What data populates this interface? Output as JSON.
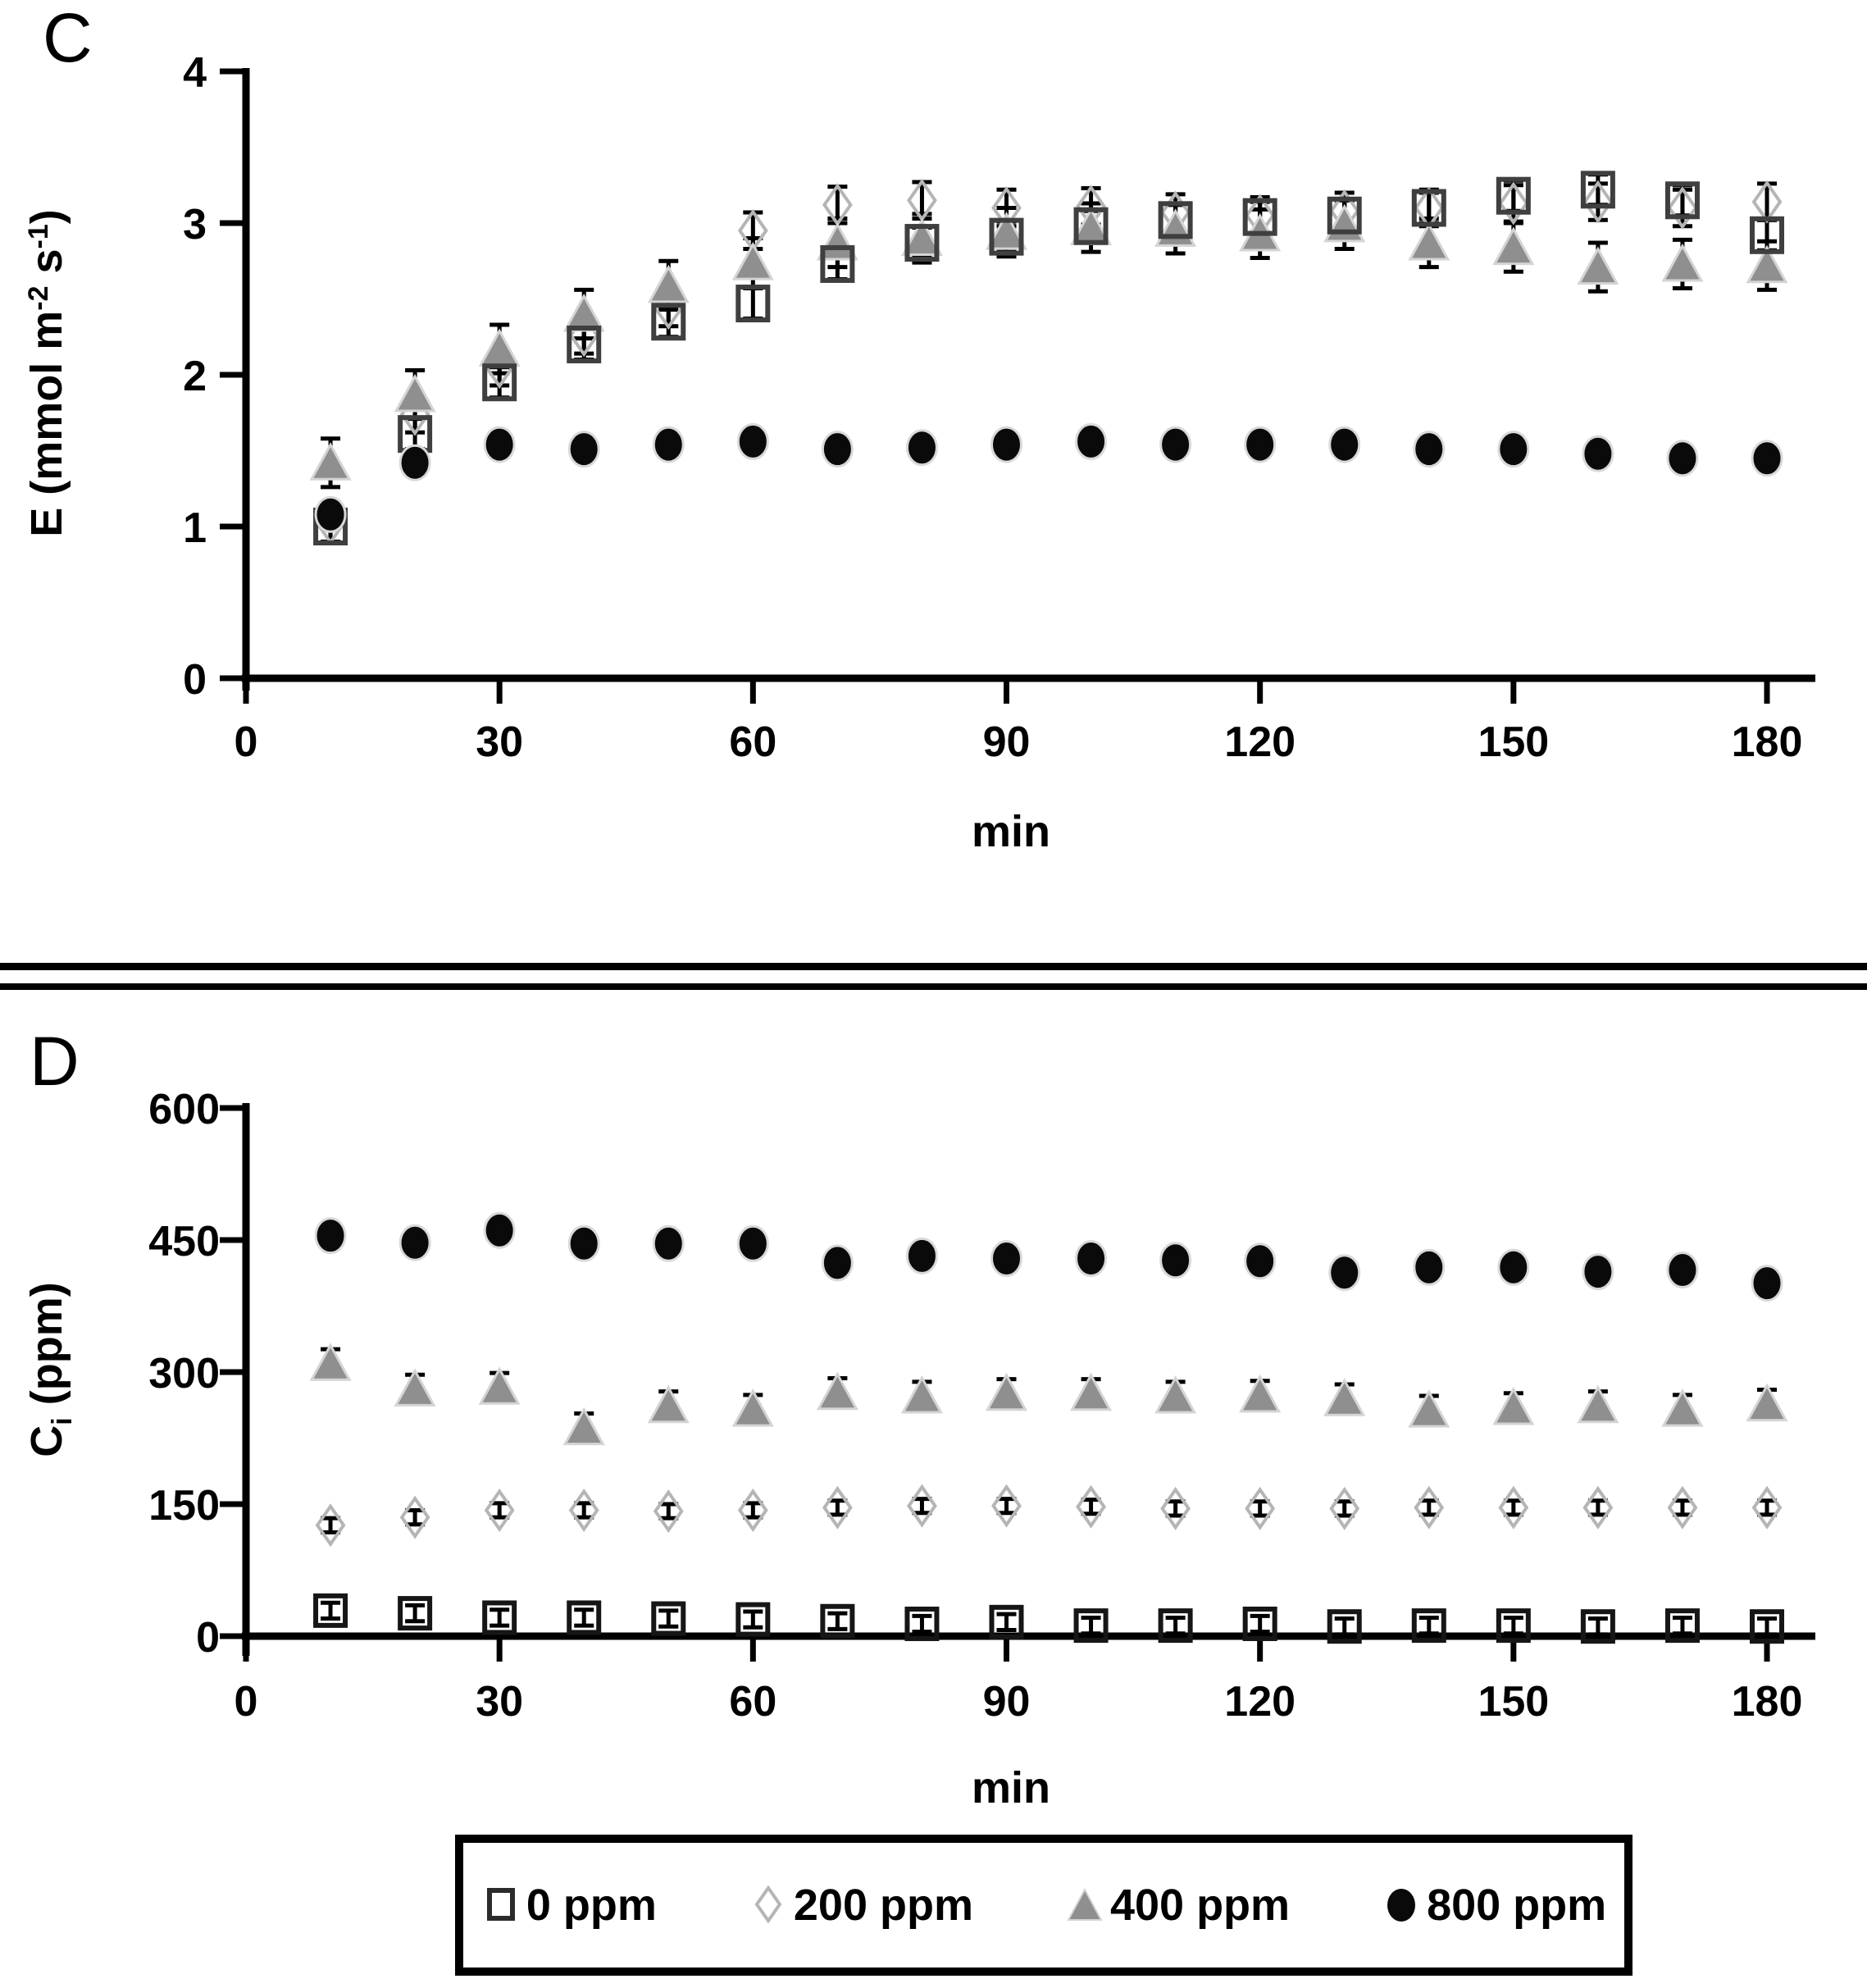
{
  "figure": {
    "panels": [
      {
        "label": "C"
      },
      {
        "label": "D"
      }
    ]
  },
  "legend": {
    "items": [
      {
        "label": "0 ppm",
        "marker": "open-square",
        "color": "#2b2b2b"
      },
      {
        "label": "200 ppm",
        "marker": "open-diamond",
        "color": "#b5b5b5"
      },
      {
        "label": "400 ppm",
        "marker": "filled-triangle",
        "color": "#8f8f8f"
      },
      {
        "label": "800 ppm",
        "marker": "filled-circle",
        "color": "#0a0a0a"
      }
    ]
  },
  "chart_data": [
    {
      "id": "C",
      "type": "scatter",
      "title": "",
      "xlabel": "min",
      "ylabel": "E (mmol m-2 s-1)",
      "ylabel_parts": [
        {
          "text": "E (mmol m"
        },
        {
          "sup": "-2"
        },
        {
          "text": " s"
        },
        {
          "sup": "-1"
        },
        {
          "text": ")"
        }
      ],
      "xlim": [
        0,
        186
      ],
      "ylim": [
        0,
        4
      ],
      "xticks": [
        0,
        30,
        60,
        90,
        120,
        150,
        180
      ],
      "yticks": [
        0,
        1,
        2,
        3,
        4
      ],
      "grid": false,
      "x": [
        10,
        20,
        30,
        40,
        50,
        60,
        70,
        80,
        90,
        100,
        110,
        120,
        130,
        140,
        150,
        160,
        170,
        180
      ],
      "series": [
        {
          "name": "0 ppm",
          "marker": "open-square",
          "color": "#3f3f3f",
          "err": 0.1,
          "values": [
            1.0,
            1.61,
            1.95,
            2.2,
            2.35,
            2.47,
            2.73,
            2.87,
            2.91,
            2.98,
            3.02,
            3.04,
            3.05,
            3.1,
            3.18,
            3.22,
            3.15,
            2.92
          ]
        },
        {
          "name": "200 ppm",
          "marker": "open-diamond",
          "color": "#b5b5b5",
          "err": 0.12,
          "values": [
            1.02,
            1.74,
            2.05,
            2.26,
            2.44,
            2.95,
            3.12,
            3.15,
            3.1,
            3.11,
            3.07,
            3.05,
            3.08,
            3.1,
            3.13,
            3.14,
            3.1,
            3.14
          ]
        },
        {
          "name": "400 ppm",
          "marker": "filled-triangle",
          "color": "#8f8f8f",
          "err": 0.16,
          "values": [
            1.42,
            1.87,
            2.17,
            2.4,
            2.59,
            2.74,
            2.87,
            2.9,
            2.94,
            2.97,
            2.96,
            2.93,
            2.99,
            2.87,
            2.84,
            2.71,
            2.73,
            2.72
          ]
        },
        {
          "name": "800 ppm",
          "marker": "filled-circle",
          "color": "#0a0a0a",
          "err": 0.05,
          "values": [
            1.08,
            1.42,
            1.54,
            1.51,
            1.54,
            1.56,
            1.51,
            1.52,
            1.54,
            1.56,
            1.54,
            1.54,
            1.54,
            1.51,
            1.51,
            1.48,
            1.45,
            1.45
          ]
        }
      ]
    },
    {
      "id": "D",
      "type": "scatter",
      "title": "",
      "xlabel": "min",
      "ylabel": "Ci (ppm)",
      "ylabel_parts": [
        {
          "text": "C"
        },
        {
          "sub": "i"
        },
        {
          "text": " (ppm)"
        }
      ],
      "xlim": [
        0,
        186
      ],
      "ylim": [
        0,
        600
      ],
      "xticks": [
        0,
        30,
        60,
        90,
        120,
        150,
        180
      ],
      "yticks": [
        0,
        150,
        300,
        450,
        600
      ],
      "grid": false,
      "x": [
        10,
        20,
        30,
        40,
        50,
        60,
        70,
        80,
        90,
        100,
        110,
        120,
        130,
        140,
        150,
        160,
        170,
        180
      ],
      "series": [
        {
          "name": "0 ppm",
          "marker": "open-square",
          "color": "#161616",
          "err": 9,
          "values": [
            29,
            26,
            21,
            21,
            20,
            19,
            17,
            14,
            16,
            12,
            12,
            14,
            11,
            12,
            12,
            11,
            12,
            11
          ]
        },
        {
          "name": "200 ppm",
          "marker": "open-diamond",
          "color": "#b5b5b5",
          "err": 8,
          "values": [
            126,
            135,
            143,
            143,
            142,
            143,
            146,
            148,
            148,
            147,
            145,
            145,
            145,
            146,
            146,
            146,
            146,
            146
          ]
        },
        {
          "name": "400 ppm",
          "marker": "filled-triangle",
          "color": "#8f8f8f",
          "err": 16,
          "values": [
            310,
            281,
            283,
            237,
            262,
            258,
            277,
            273,
            276,
            276,
            273,
            274,
            270,
            257,
            260,
            262,
            258,
            264
          ]
        },
        {
          "name": "800 ppm",
          "marker": "filled-circle",
          "color": "#0a0a0a",
          "err": 7,
          "values": [
            455,
            447,
            461,
            446,
            446,
            446,
            424,
            432,
            429,
            429,
            427,
            426,
            413,
            419,
            419,
            414,
            416,
            401
          ]
        }
      ]
    }
  ]
}
